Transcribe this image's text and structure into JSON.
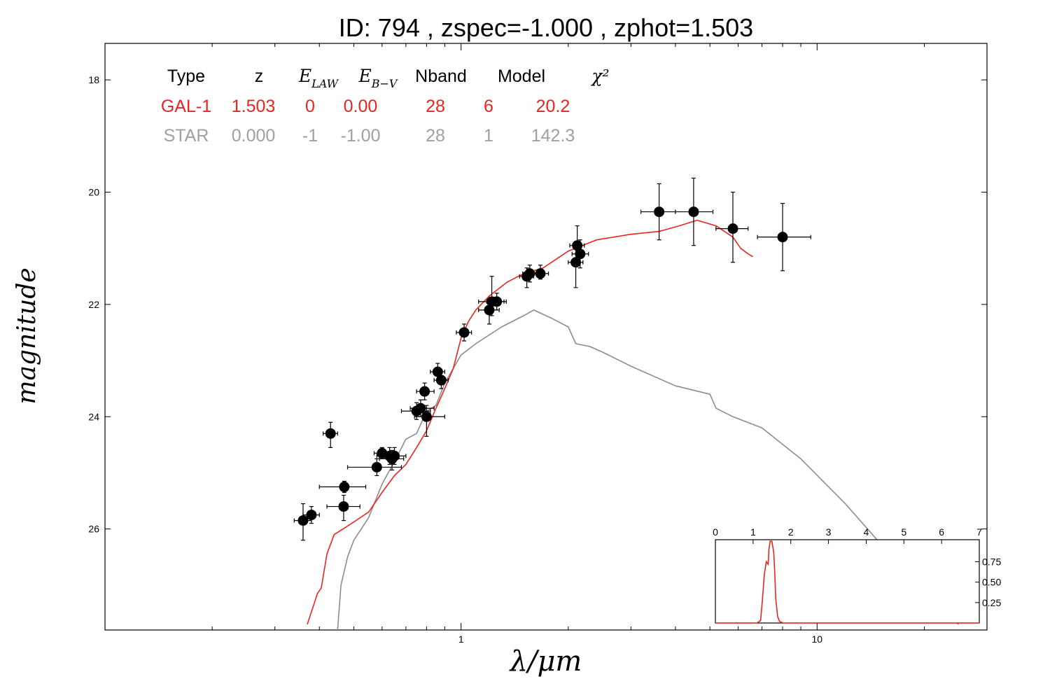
{
  "chart_data": {
    "type": "scatter",
    "title": "ID:  794   , zspec=-1.000 , zphot=1.503",
    "xlabel": "λ/μm",
    "ylabel": "magnitude",
    "x_scale": "log",
    "xlim": [
      0.1,
      30
    ],
    "ylim": [
      27.8,
      17.35
    ],
    "y_inverted": true,
    "x_tick_labels": [
      "1",
      "10"
    ],
    "y_tick_labels": [
      "18",
      "20",
      "22",
      "24",
      "26"
    ],
    "table": {
      "headers": [
        "Type",
        "z",
        "E_LAW",
        "E_B−V",
        "Nband",
        "Model",
        "χ²"
      ],
      "rows": [
        {
          "color": "#e8261f",
          "cells": [
            "GAL-1",
            "1.503",
            "0",
            "0.00",
            "28",
            "6",
            "20.2"
          ]
        },
        {
          "color": "#a0a0a0",
          "cells": [
            "STAR",
            "0.000",
            "-1",
            "-1.00",
            "28",
            "1",
            "142.3"
          ]
        }
      ]
    },
    "series": [
      {
        "name": "GAL-1",
        "kind": "line",
        "color": "#e8261f",
        "x": [
          0.37,
          0.395,
          0.405,
          0.42,
          0.44,
          0.48,
          0.55,
          0.6,
          0.65,
          0.7,
          0.75,
          0.8,
          0.85,
          0.9,
          0.95,
          1.0,
          1.05,
          1.1,
          1.2,
          1.35,
          1.5,
          1.7,
          2.0,
          2.4,
          3.0,
          3.6,
          4.1,
          4.6,
          5.2,
          5.8,
          6.1,
          6.4,
          6.6
        ],
        "y": [
          27.7,
          27.15,
          27.05,
          26.45,
          26.1,
          25.95,
          25.7,
          25.35,
          25.05,
          24.85,
          24.55,
          24.25,
          23.85,
          23.5,
          23.15,
          22.6,
          22.3,
          22.1,
          21.85,
          21.6,
          21.45,
          21.35,
          21.05,
          20.85,
          20.75,
          20.7,
          20.6,
          20.5,
          20.6,
          20.8,
          21.0,
          21.1,
          21.15
        ]
      },
      {
        "name": "STAR",
        "kind": "line",
        "color": "#8c8c8c",
        "x": [
          0.45,
          0.46,
          0.48,
          0.5,
          0.55,
          0.6,
          0.65,
          0.7,
          0.75,
          0.8,
          0.85,
          0.9,
          1.0,
          1.1,
          1.3,
          1.5,
          1.6,
          1.8,
          2.0,
          2.1,
          2.3,
          2.5,
          3.0,
          4.0,
          5.0,
          5.2,
          5.8,
          7.0,
          9.0,
          12.0,
          16.0,
          20.0,
          25.0
        ],
        "y": [
          27.8,
          27.0,
          26.5,
          26.2,
          25.8,
          25.2,
          24.8,
          24.4,
          24.3,
          23.9,
          23.8,
          23.4,
          22.9,
          22.7,
          22.4,
          22.2,
          22.1,
          22.25,
          22.4,
          22.7,
          22.75,
          22.85,
          23.1,
          23.45,
          23.6,
          23.85,
          24.0,
          24.2,
          24.75,
          25.55,
          26.45,
          27.3,
          27.7
        ]
      }
    ],
    "observations": {
      "name": "photometry",
      "color": "#000000",
      "points": [
        {
          "x": 0.36,
          "y": 25.85,
          "xerr": [
            0.34,
            0.38
          ],
          "yerr": [
            25.55,
            26.2
          ]
        },
        {
          "x": 0.38,
          "y": 25.75,
          "xerr": [
            0.36,
            0.4
          ],
          "yerr": [
            25.6,
            25.9
          ]
        },
        {
          "x": 0.43,
          "y": 24.3,
          "xerr": [
            0.41,
            0.45
          ],
          "yerr": [
            24.1,
            24.55
          ]
        },
        {
          "x": 0.47,
          "y": 25.25,
          "xerr": [
            0.4,
            0.54
          ],
          "yerr": [
            25.15,
            25.35
          ]
        },
        {
          "x": 0.468,
          "y": 25.6,
          "xerr": [
            0.42,
            0.52
          ],
          "yerr": [
            25.4,
            25.85
          ]
        },
        {
          "x": 0.58,
          "y": 24.9,
          "xerr": [
            0.48,
            0.68
          ],
          "yerr": [
            24.75,
            25.05
          ]
        },
        {
          "x": 0.6,
          "y": 24.65,
          "xerr": [
            0.57,
            0.63
          ],
          "yerr": [
            24.55,
            24.75
          ]
        },
        {
          "x": 0.63,
          "y": 24.7,
          "xerr": [
            0.58,
            0.67
          ],
          "yerr": [
            24.55,
            24.85
          ]
        },
        {
          "x": 0.64,
          "y": 24.75,
          "xerr": [
            0.59,
            0.69
          ],
          "yerr": [
            24.6,
            24.95
          ]
        },
        {
          "x": 0.65,
          "y": 24.7,
          "xerr": [
            0.61,
            0.7
          ],
          "yerr": [
            24.55,
            24.85
          ]
        },
        {
          "x": 0.75,
          "y": 23.9,
          "xerr": [
            0.68,
            0.82
          ],
          "yerr": [
            23.75,
            24.05
          ]
        },
        {
          "x": 0.77,
          "y": 23.85,
          "xerr": [
            0.72,
            0.84
          ],
          "yerr": [
            23.7,
            24.0
          ]
        },
        {
          "x": 0.79,
          "y": 23.55,
          "xerr": [
            0.75,
            0.84
          ],
          "yerr": [
            23.4,
            23.7
          ]
        },
        {
          "x": 0.8,
          "y": 24.0,
          "xerr": [
            0.74,
            0.9
          ],
          "yerr": [
            23.8,
            24.35
          ]
        },
        {
          "x": 0.86,
          "y": 23.2,
          "xerr": [
            0.82,
            0.9
          ],
          "yerr": [
            23.05,
            23.35
          ]
        },
        {
          "x": 0.88,
          "y": 23.35,
          "xerr": [
            0.84,
            0.92
          ],
          "yerr": [
            23.2,
            23.5
          ]
        },
        {
          "x": 1.02,
          "y": 22.5,
          "xerr": [
            0.97,
            1.07
          ],
          "yerr": [
            22.35,
            22.65
          ]
        },
        {
          "x": 1.2,
          "y": 22.1,
          "xerr": [
            1.12,
            1.28
          ],
          "yerr": [
            21.95,
            22.35
          ]
        },
        {
          "x": 1.22,
          "y": 21.95,
          "xerr": [
            1.12,
            1.32
          ],
          "yerr": [
            21.5,
            22.2
          ]
        },
        {
          "x": 1.26,
          "y": 21.95,
          "xerr": [
            1.18,
            1.34
          ],
          "yerr": [
            21.8,
            22.1
          ]
        },
        {
          "x": 1.53,
          "y": 21.5,
          "xerr": [
            1.46,
            1.6
          ],
          "yerr": [
            21.35,
            21.7
          ]
        },
        {
          "x": 1.56,
          "y": 21.45,
          "xerr": [
            1.49,
            1.63
          ],
          "yerr": [
            21.3,
            21.6
          ]
        },
        {
          "x": 1.67,
          "y": 21.45,
          "xerr": [
            1.58,
            1.76
          ],
          "yerr": [
            21.3,
            21.55
          ]
        },
        {
          "x": 2.12,
          "y": 20.95,
          "xerr": [
            2.02,
            2.22
          ],
          "yerr": [
            20.6,
            21.1
          ]
        },
        {
          "x": 2.16,
          "y": 21.1,
          "xerr": [
            2.05,
            2.28
          ],
          "yerr": [
            20.85,
            21.35
          ]
        },
        {
          "x": 2.1,
          "y": 21.25,
          "xerr": [
            2.0,
            2.2
          ],
          "yerr": [
            20.9,
            21.7
          ]
        },
        {
          "x": 3.6,
          "y": 20.35,
          "xerr": [
            3.2,
            4.0
          ],
          "yerr": [
            19.85,
            20.85
          ]
        },
        {
          "x": 4.5,
          "y": 20.35,
          "xerr": [
            4.0,
            5.1
          ],
          "yerr": [
            19.75,
            20.95
          ]
        },
        {
          "x": 5.8,
          "y": 20.65,
          "xerr": [
            5.2,
            6.4
          ],
          "yerr": [
            20.0,
            21.25
          ]
        },
        {
          "x": 8.0,
          "y": 20.8,
          "xerr": [
            6.8,
            9.6
          ],
          "yerr": [
            20.2,
            21.4
          ]
        }
      ]
    },
    "inset": {
      "type": "line",
      "xlim": [
        0,
        7
      ],
      "ylim": [
        0,
        1.02
      ],
      "x_tick_labels": [
        "0",
        "1",
        "2",
        "3",
        "4",
        "5",
        "6",
        "7"
      ],
      "y_tick_labels": [
        "0.25",
        "0.50",
        "0.75"
      ],
      "series": [
        {
          "name": "pdz",
          "color": "#e8261f",
          "x": [
            0,
            1.1,
            1.2,
            1.25,
            1.3,
            1.35,
            1.4,
            1.42,
            1.45,
            1.5,
            1.55,
            1.58,
            1.6,
            1.65,
            1.7,
            1.8,
            7.0
          ],
          "y": [
            0,
            0,
            0.03,
            0.3,
            0.6,
            0.75,
            0.72,
            0.9,
            1.0,
            1.0,
            0.85,
            0.55,
            0.3,
            0.08,
            0.02,
            0,
            0
          ]
        }
      ]
    }
  }
}
